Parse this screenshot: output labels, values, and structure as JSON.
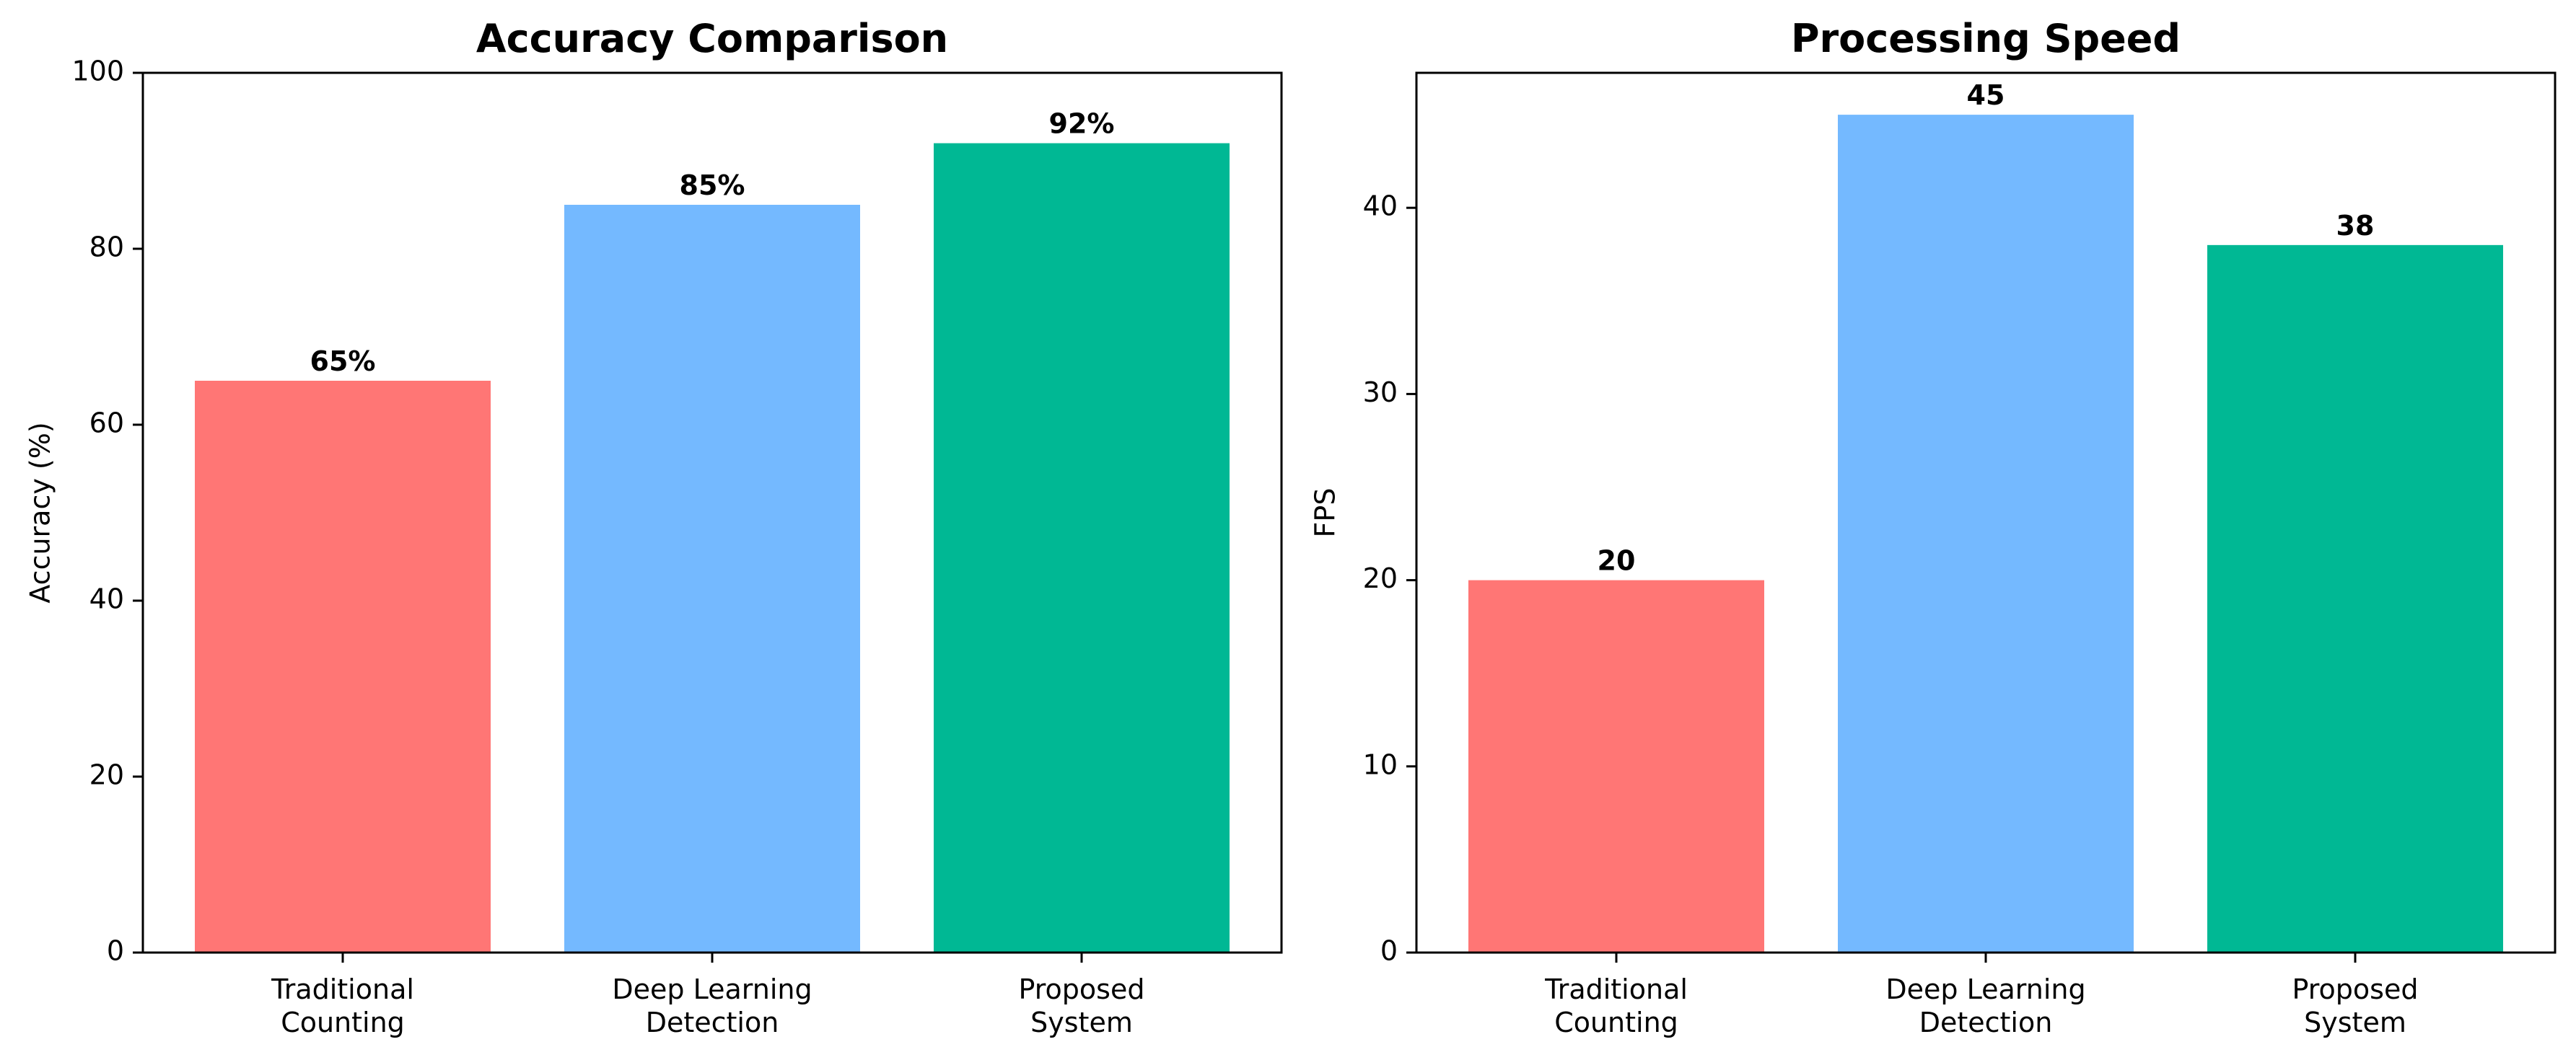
{
  "chart_data": [
    {
      "type": "bar",
      "title": "Accuracy Comparison",
      "xlabel": "",
      "ylabel": "Accuracy (%)",
      "categories": [
        "Traditional\nCounting",
        "Deep Learning\nDetection",
        "Proposed\nSystem"
      ],
      "values": [
        65,
        85,
        92
      ],
      "value_labels": [
        "65%",
        "85%",
        "92%"
      ],
      "colors": [
        "#ff7675",
        "#74b9ff",
        "#00b894"
      ],
      "ylim": [
        0,
        100
      ],
      "yticks": [
        0,
        20,
        40,
        60,
        80,
        100
      ],
      "grid": false,
      "legend": "none"
    },
    {
      "type": "bar",
      "title": "Processing Speed",
      "xlabel": "",
      "ylabel": "FPS",
      "categories": [
        "Traditional\nCounting",
        "Deep Learning\nDetection",
        "Proposed\nSystem"
      ],
      "values": [
        20,
        45,
        38
      ],
      "value_labels": [
        "20",
        "45",
        "38"
      ],
      "colors": [
        "#ff7675",
        "#74b9ff",
        "#00b894"
      ],
      "ylim": [
        0,
        47.25
      ],
      "yticks": [
        0,
        10,
        20,
        30,
        40
      ],
      "grid": false,
      "legend": "none"
    }
  ]
}
